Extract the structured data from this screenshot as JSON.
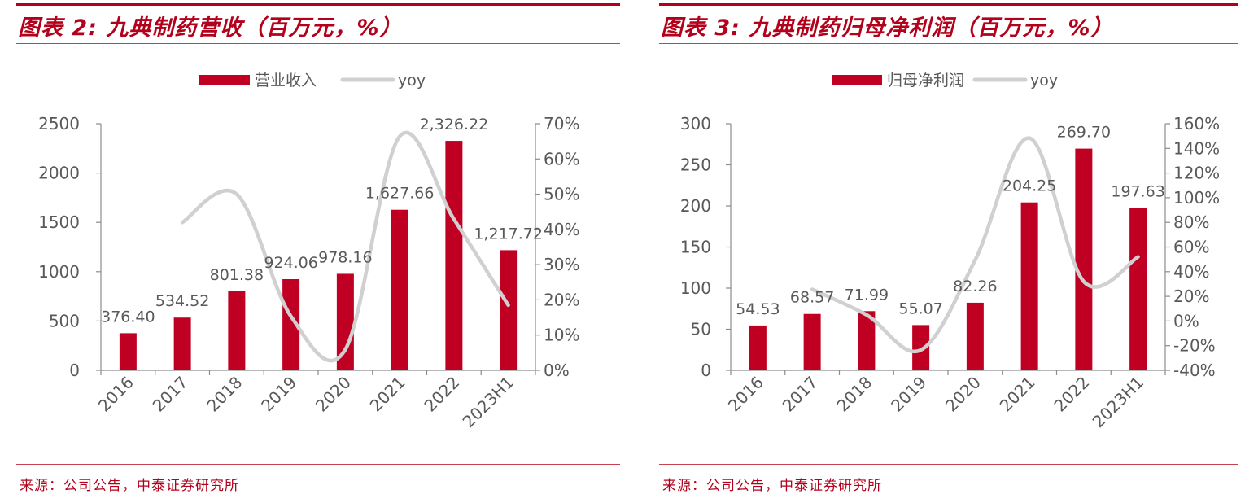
{
  "panels": [
    {
      "title": "图表 2:  九典制药营收（百万元，%）",
      "source": "来源：公司公告，中泰证券研究所"
    },
    {
      "title": "图表 3:  九典制药归母净利润（百万元，%）",
      "source": "来源：公司公告，中泰证券研究所"
    }
  ],
  "colors": {
    "bar": "#c00023",
    "line": "#d0d0d0",
    "axis": "#8c8c8c",
    "text": "#595959",
    "accent": "#b3001b"
  },
  "chart_data": [
    {
      "type": "bar",
      "categories": [
        "2016",
        "2017",
        "2018",
        "2019",
        "2020",
        "2021",
        "2022",
        "2023H1"
      ],
      "series": [
        {
          "name": "营业收入",
          "type": "bar",
          "axis": "left",
          "values": [
            376.4,
            534.52,
            801.38,
            924.06,
            978.16,
            1627.66,
            2326.22,
            1217.72
          ],
          "labels": [
            "376.40",
            "534.52",
            "801.38",
            "924.06",
            "978.16",
            "1,627.66",
            "2,326.22",
            "1,217.72"
          ]
        },
        {
          "name": "yoy",
          "type": "line",
          "axis": "right",
          "values": [
            null,
            42.0,
            50.0,
            15.3,
            5.9,
            66.4,
            42.9,
            18.5
          ]
        }
      ],
      "ylim_left": [
        0,
        2500
      ],
      "yticks_left": [
        "0",
        "500",
        "1000",
        "1500",
        "2000",
        "2500"
      ],
      "ylim_right": [
        0,
        70
      ],
      "yticks_right": [
        "0%",
        "10%",
        "20%",
        "30%",
        "40%",
        "50%",
        "60%",
        "70%"
      ],
      "legend_position": "top-center"
    },
    {
      "type": "bar",
      "categories": [
        "2016",
        "2017",
        "2018",
        "2019",
        "2020",
        "2021",
        "2022",
        "2023H1"
      ],
      "series": [
        {
          "name": "归母净利润",
          "type": "bar",
          "axis": "left",
          "values": [
            54.53,
            68.57,
            71.99,
            55.07,
            82.26,
            204.25,
            269.7,
            197.63
          ],
          "labels": [
            "54.53",
            "68.57",
            "71.99",
            "55.07",
            "82.26",
            "204.25",
            "269.70",
            "197.63"
          ]
        },
        {
          "name": "yoy",
          "type": "line",
          "axis": "right",
          "values": [
            null,
            25.7,
            5.0,
            -23.5,
            49.4,
            148.3,
            32.0,
            52.0
          ]
        }
      ],
      "ylim_left": [
        0,
        300
      ],
      "yticks_left": [
        "0",
        "50",
        "100",
        "150",
        "200",
        "250",
        "300"
      ],
      "ylim_right": [
        -40,
        160
      ],
      "yticks_right": [
        "-40%",
        "-20%",
        "0%",
        "20%",
        "40%",
        "60%",
        "80%",
        "100%",
        "120%",
        "140%",
        "160%"
      ],
      "legend_position": "top-center"
    }
  ]
}
